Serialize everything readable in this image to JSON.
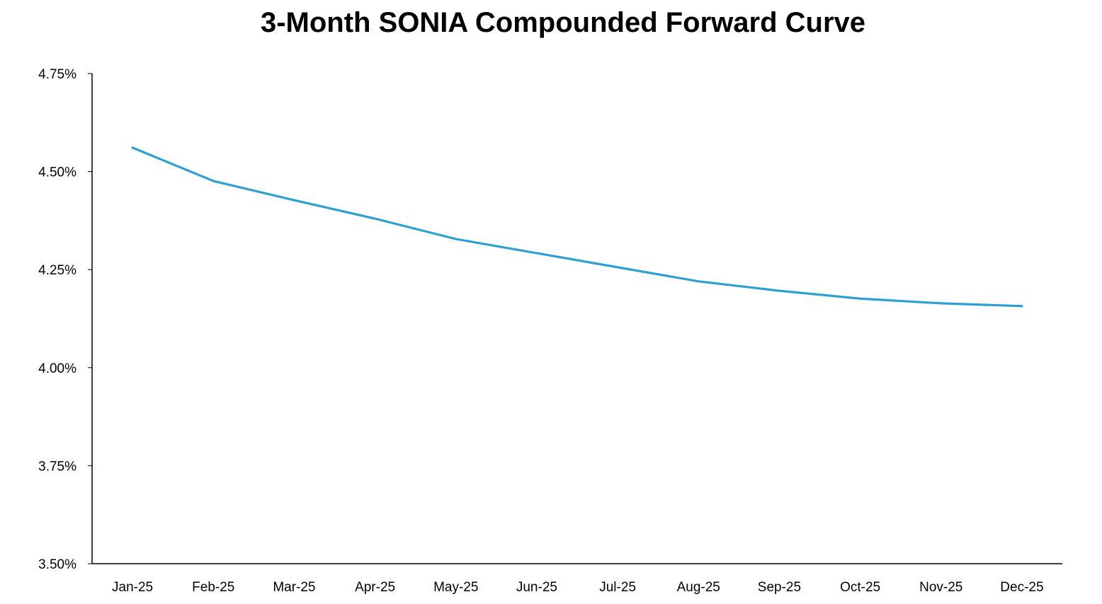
{
  "chart_data": {
    "type": "line",
    "title": "3-Month SONIA Compounded Forward Curve",
    "xlabel": "",
    "ylabel": "",
    "categories": [
      "Jan-25",
      "Feb-25",
      "Mar-25",
      "Apr-25",
      "May-25",
      "Jun-25",
      "Jul-25",
      "Aug-25",
      "Sep-25",
      "Oct-25",
      "Nov-25",
      "Dec-25"
    ],
    "series": [
      {
        "name": "3-Month SONIA Compounded Forward",
        "color": "#2E9FD1",
        "values": [
          4.561,
          4.476,
          4.427,
          4.38,
          4.328,
          4.292,
          4.256,
          4.22,
          4.196,
          4.176,
          4.164,
          4.157
        ]
      }
    ],
    "ylim": [
      3.5,
      4.75
    ],
    "yticks": [
      3.5,
      3.75,
      4.0,
      4.25,
      4.5,
      4.75
    ],
    "ytick_labels": [
      "3.50%",
      "3.75%",
      "4.00%",
      "4.25%",
      "4.50%",
      "4.75%"
    ],
    "grid": false,
    "legend": "none"
  }
}
